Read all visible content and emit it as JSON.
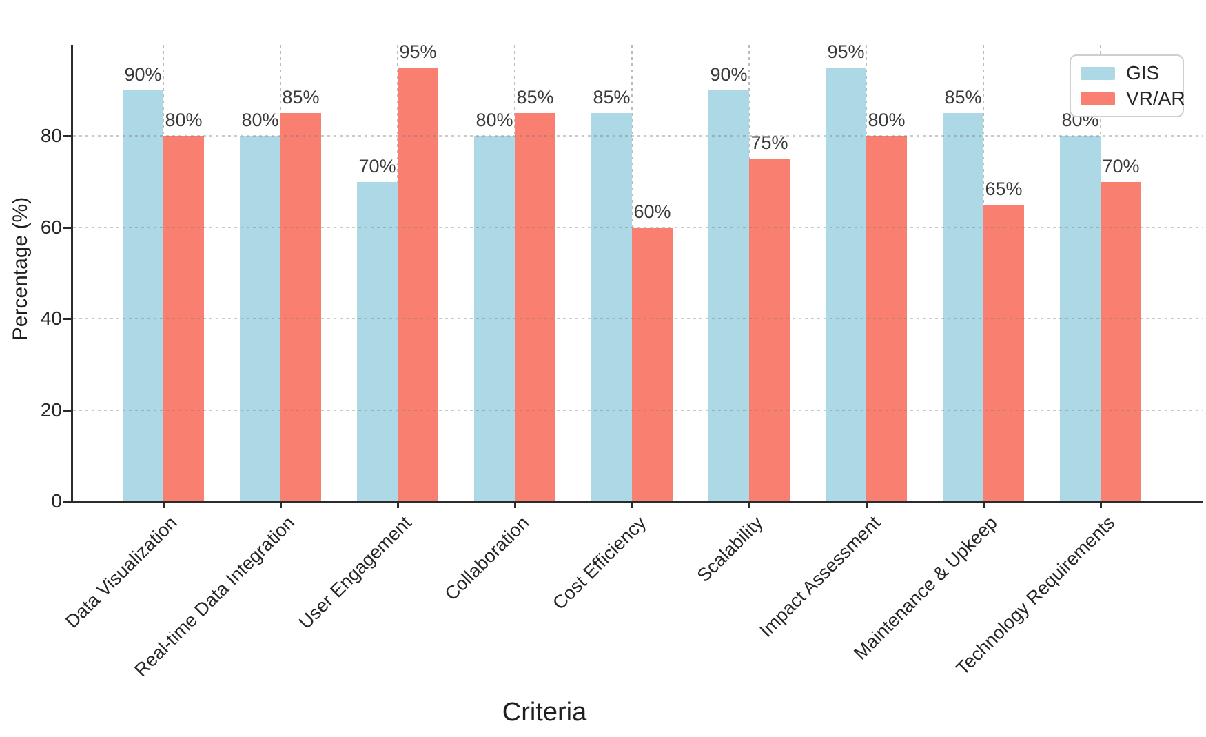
{
  "chart_data": {
    "type": "bar",
    "xlabel": "Criteria",
    "ylabel": "Percentage (%)",
    "ylim": [
      0,
      100
    ],
    "grid": {
      "style": "dashed",
      "axes": "both"
    },
    "legend_position": "upper-right",
    "yticks": [
      {
        "label": "0",
        "value": 0
      },
      {
        "label": "20",
        "value": 20
      },
      {
        "label": "40",
        "value": 40
      },
      {
        "label": "60",
        "value": 60
      },
      {
        "label": "80",
        "value": 80
      }
    ],
    "categories": [
      "Data Visualization",
      "Real-time Data Integration",
      "User Engagement",
      "Collaboration",
      "Cost Efficiency",
      "Scalability",
      "Impact Assessment",
      "Maintenance & Upkeep",
      "Technology Requirements"
    ],
    "series": [
      {
        "name": "GIS",
        "color": "#ADD8E6",
        "values": [
          90,
          80,
          70,
          80,
          85,
          90,
          95,
          85,
          80
        ],
        "labels": [
          "90%",
          "80%",
          "70%",
          "80%",
          "85%",
          "90%",
          "95%",
          "85%",
          "80%"
        ]
      },
      {
        "name": "VR/AR",
        "color": "#F98070",
        "values": [
          80,
          85,
          95,
          85,
          60,
          75,
          80,
          65,
          70
        ],
        "labels": [
          "80%",
          "85%",
          "95%",
          "85%",
          "60%",
          "75%",
          "80%",
          "65%",
          "70%"
        ]
      }
    ]
  },
  "colors": {
    "background": "#ffffff",
    "axis": "#2b2b2b",
    "grid": "#bdbdbd",
    "text": "#262626",
    "legend_border": "#cfcfcf",
    "gis_bar": "#ADD8E6",
    "vrar_bar": "#F98070"
  }
}
